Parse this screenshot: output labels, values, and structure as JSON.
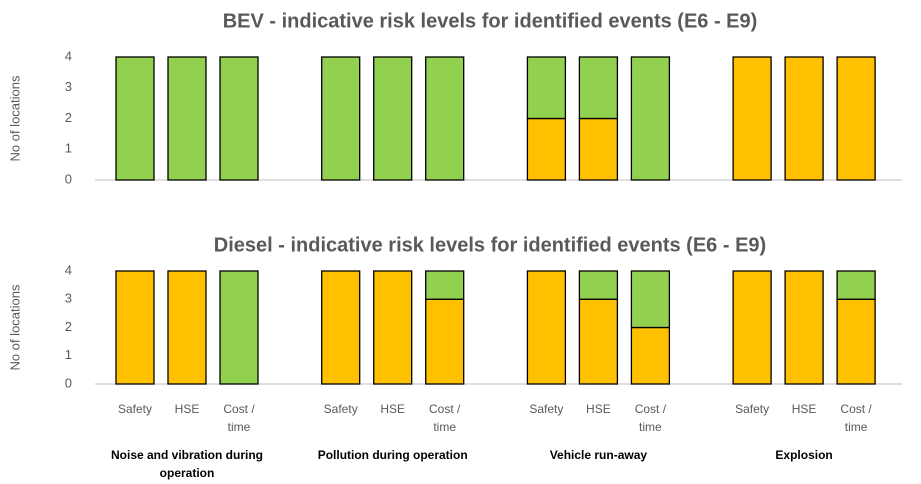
{
  "chart_data": [
    {
      "type": "bar",
      "stacked": true,
      "title": "BEV - indicative risk levels for identified events (E6 - E9)",
      "y_label": "No of locations",
      "ylim": [
        0,
        4
      ],
      "yticks": [
        0,
        1,
        2,
        3,
        4
      ],
      "grid": false,
      "series": [
        {
          "color": "#FFC000",
          "values": [
            0,
            0,
            0,
            0,
            0,
            0,
            2,
            2,
            0,
            4,
            4,
            4
          ]
        },
        {
          "color": "#92D050",
          "values": [
            4,
            4,
            4,
            4,
            4,
            4,
            2,
            2,
            4,
            0,
            0,
            0
          ]
        }
      ]
    },
    {
      "type": "bar",
      "stacked": true,
      "title": "Diesel - indicative risk levels for identified events (E6 - E9)",
      "y_label": "No of locations",
      "ylim": [
        0,
        4
      ],
      "yticks": [
        0,
        1,
        2,
        3,
        4
      ],
      "grid": false,
      "categories": [
        "Safety",
        "HSE",
        "Cost / time",
        "Safety",
        "HSE",
        "Cost / time",
        "Safety",
        "HSE",
        "Cost / time",
        "Safety",
        "HSE",
        "Cost / time"
      ],
      "groups": [
        "Noise and vibration during operation",
        "Pollution during operation",
        "Vehicle run-away",
        "Explosion"
      ],
      "series": [
        {
          "color": "#FFC000",
          "values": [
            4,
            4,
            0,
            4,
            4,
            3,
            4,
            3,
            2,
            4,
            4,
            3
          ]
        },
        {
          "color": "#92D050",
          "values": [
            0,
            0,
            4,
            0,
            0,
            1,
            0,
            1,
            2,
            0,
            0,
            1
          ]
        }
      ]
    }
  ]
}
